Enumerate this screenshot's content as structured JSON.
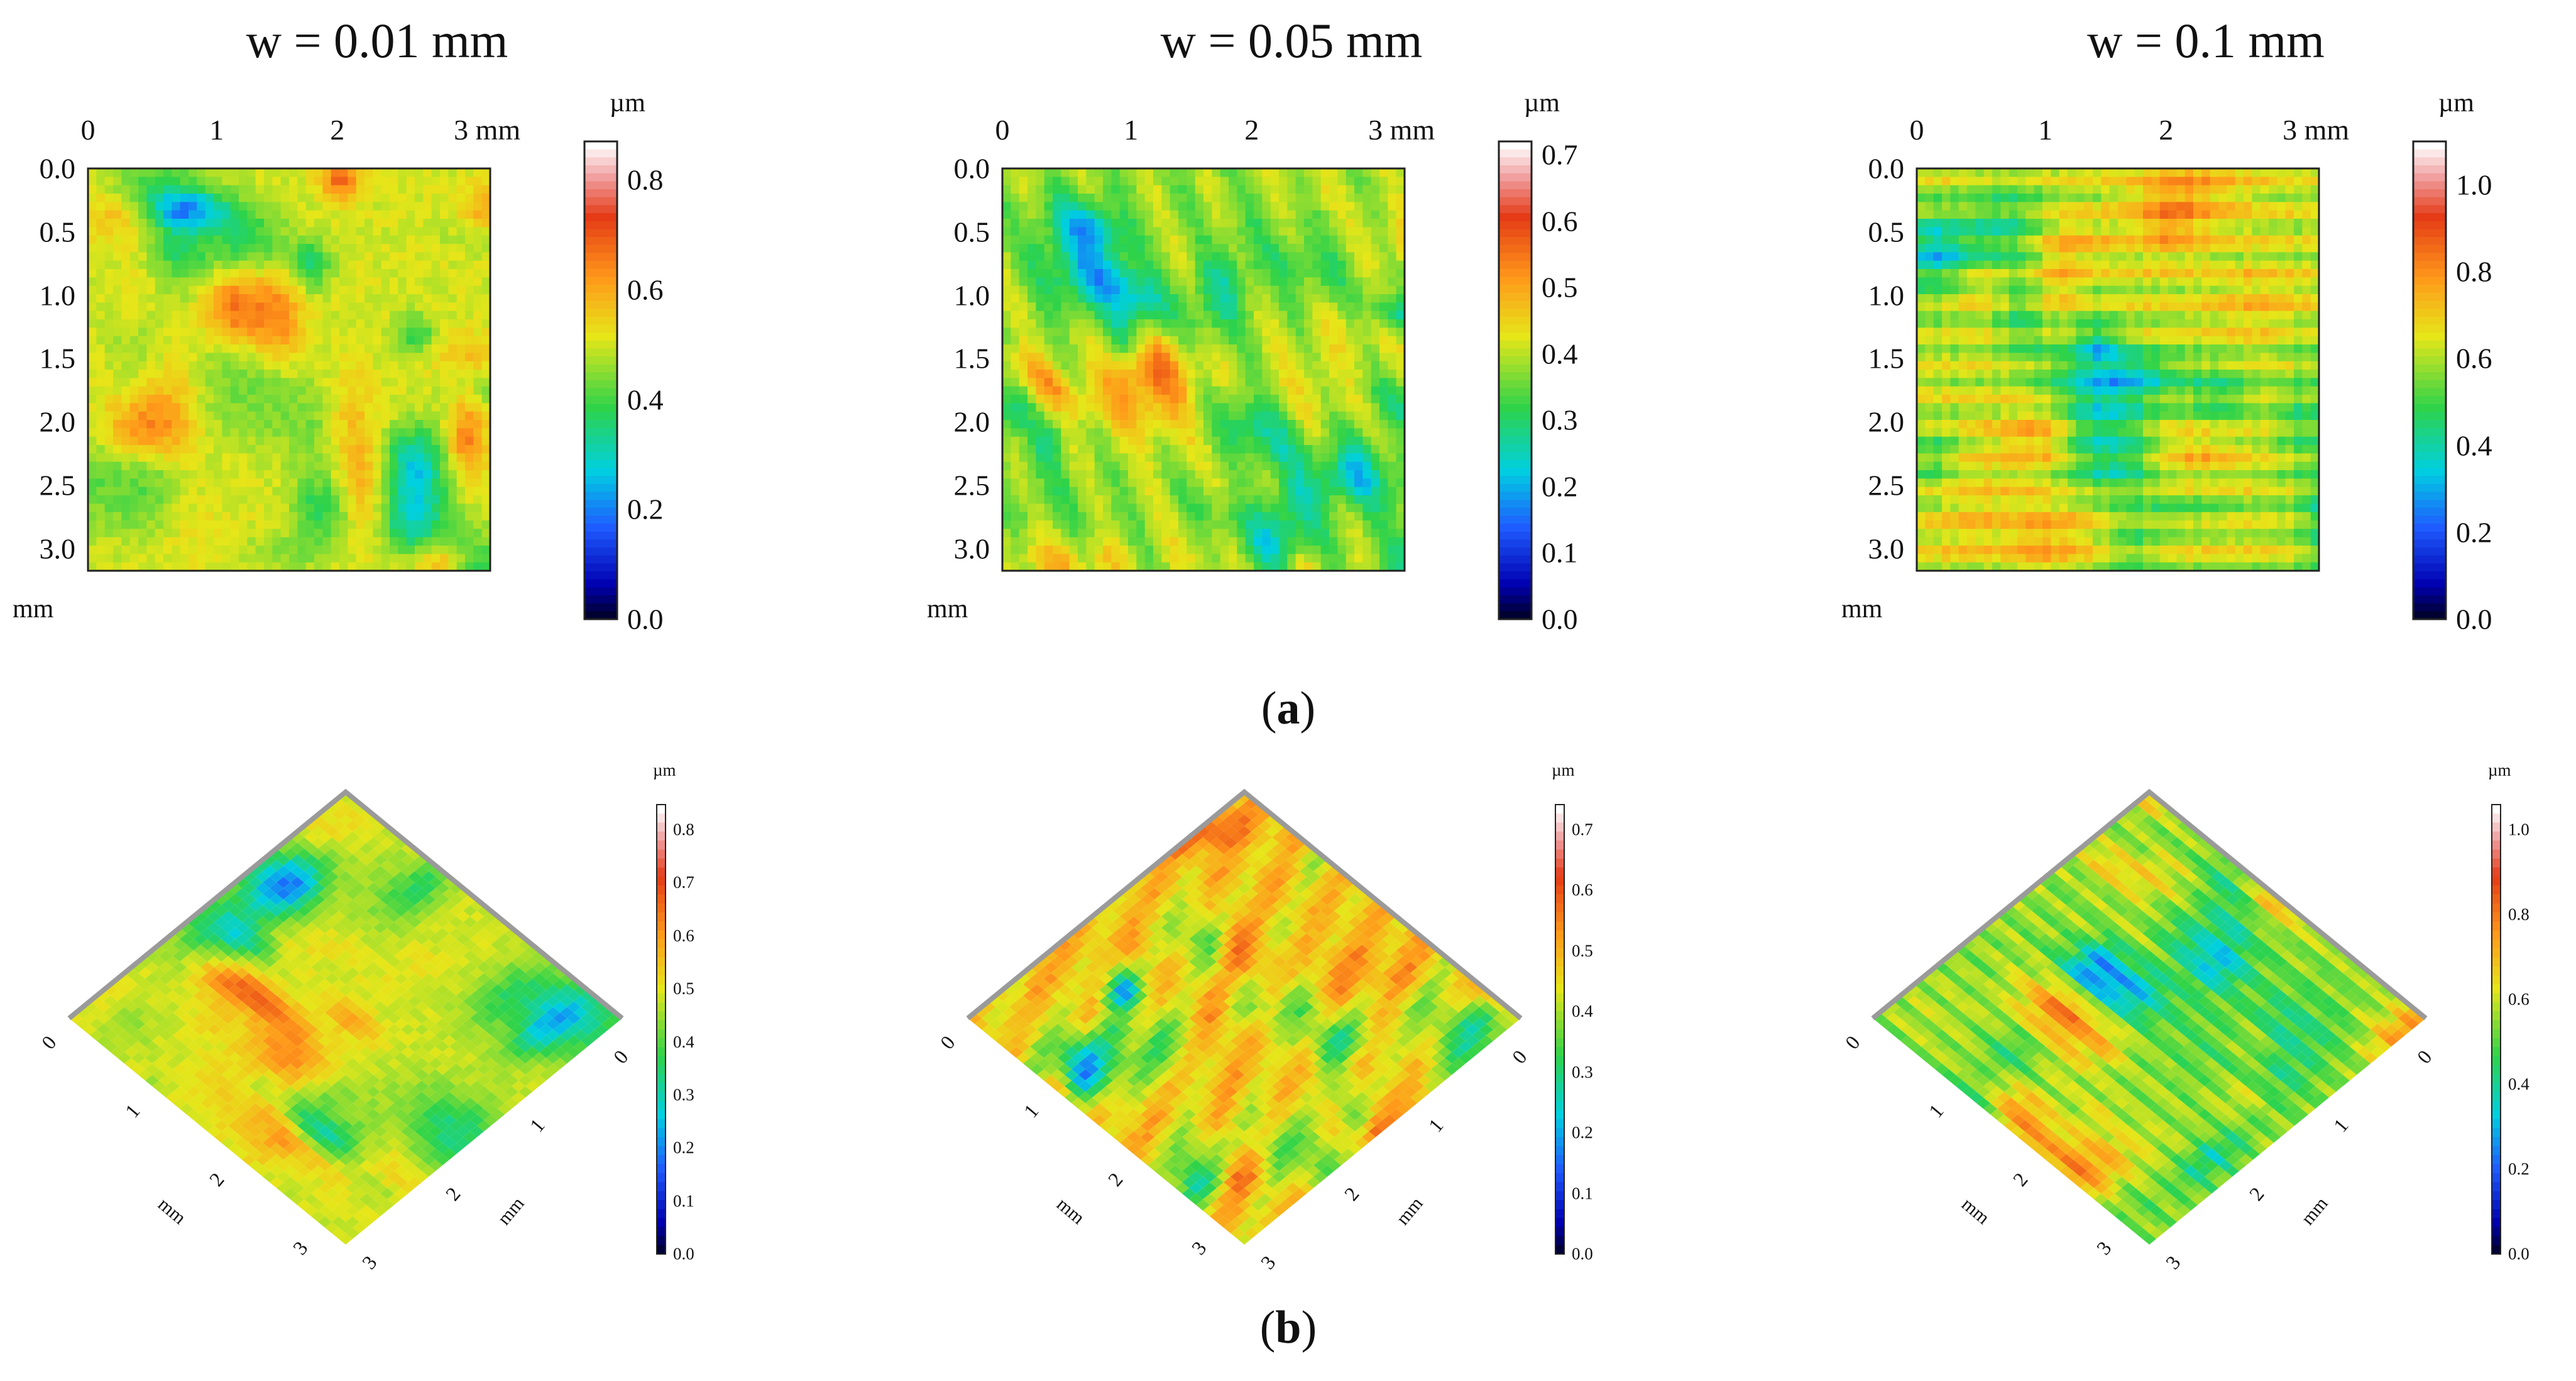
{
  "panels_top": [
    {
      "title": "w = 0.01 mm",
      "colorbar": [
        "0.8",
        "0.6",
        "0.4",
        "0.2",
        "0.0"
      ],
      "cb_values": [
        0.8,
        0.6,
        0.4,
        0.2,
        0.0
      ],
      "cb_max": 0.87
    },
    {
      "title": "w = 0.05 mm",
      "colorbar": [
        "0.7",
        "0.6",
        "0.5",
        "0.4",
        "0.3",
        "0.2",
        "0.1",
        "0.0"
      ],
      "cb_values": [
        0.7,
        0.6,
        0.5,
        0.4,
        0.3,
        0.2,
        0.1,
        0.0
      ],
      "cb_max": 0.72
    },
    {
      "title": "w = 0.1 mm",
      "colorbar": [
        "1.0",
        "0.8",
        "0.6",
        "0.4",
        "0.2",
        "0.0"
      ],
      "cb_values": [
        1.0,
        0.8,
        0.6,
        0.4,
        0.2,
        0.0
      ],
      "cb_max": 1.1
    }
  ],
  "x_ticks": [
    "0",
    "1",
    "2",
    "3 mm"
  ],
  "y_ticks": [
    "0.0",
    "0.5",
    "1.0",
    "1.5",
    "2.0",
    "2.5",
    "3.0"
  ],
  "axis_unit": "mm",
  "colorbar_unit": "µm",
  "panels_3d": [
    {
      "colorbar": [
        "0.8",
        "0.7",
        "0.6",
        "0.5",
        "0.4",
        "0.3",
        "0.2",
        "0.1",
        "0.0"
      ]
    },
    {
      "colorbar": [
        "0.7",
        "0.6",
        "0.5",
        "0.4",
        "0.3",
        "0.2",
        "0.1",
        "0.0"
      ]
    },
    {
      "colorbar": [
        "1.0",
        "0.8",
        "0.6",
        "0.4",
        "0.2",
        "0.0"
      ]
    }
  ],
  "iso_ticks": [
    "0",
    "1",
    "2",
    "3"
  ],
  "label_a": "a",
  "label_b": "b"
}
